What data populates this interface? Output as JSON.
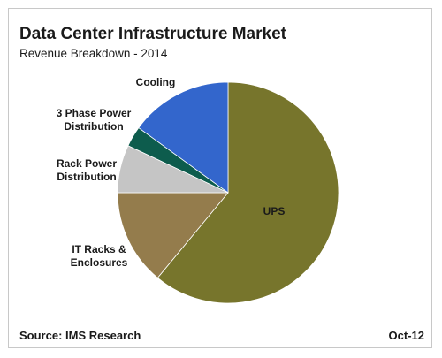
{
  "chart_data": {
    "type": "pie",
    "title": "Data Center Infrastructure Market",
    "subtitle": "Revenue Breakdown - 2014",
    "slices": [
      {
        "label": "UPS",
        "value": 61,
        "color": "#77752c"
      },
      {
        "label": "IT Racks & Enclosures",
        "value": 14,
        "color": "#947c4c"
      },
      {
        "label": "Rack Power Distribution",
        "value": 7,
        "color": "#c5c5c5"
      },
      {
        "label": "3 Phase Power Distribution",
        "value": 3,
        "color": "#0d5c4d"
      },
      {
        "label": "Cooling",
        "value": 15,
        "color": "#3366cc"
      }
    ]
  },
  "footer": {
    "source": "Source: IMS Research",
    "date": "Oct-12"
  }
}
